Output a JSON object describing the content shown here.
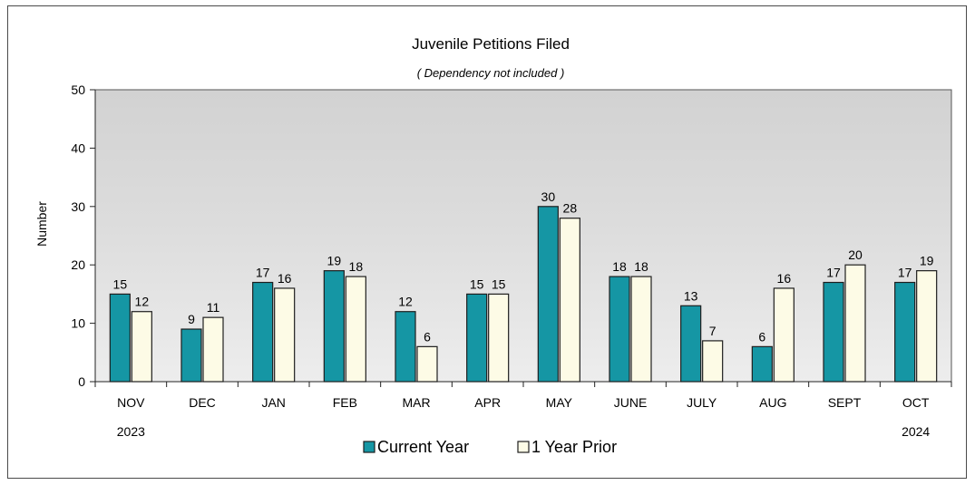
{
  "chart_data": {
    "type": "bar",
    "title": "Juvenile Petitions Filed",
    "subtitle": "( Dependency not included )",
    "ylabel": "Number",
    "xlabel": "",
    "ylim": [
      0,
      50
    ],
    "yticks": [
      0,
      10,
      20,
      30,
      40,
      50
    ],
    "categories": [
      "NOV",
      "DEC",
      "JAN",
      "FEB",
      "MAR",
      "APR",
      "MAY",
      "JUNE",
      "JULY",
      "AUG",
      "SEPT",
      "OCT"
    ],
    "year_labels": [
      {
        "text": "2023",
        "category": "NOV"
      },
      {
        "text": "2024",
        "category": "OCT"
      }
    ],
    "series": [
      {
        "name": "Current Year",
        "color": "#1596a4",
        "values": [
          15,
          9,
          17,
          19,
          12,
          15,
          30,
          18,
          13,
          6,
          17,
          17
        ]
      },
      {
        "name": "1 Year Prior",
        "color": "#fdfbe6",
        "values": [
          12,
          11,
          16,
          18,
          6,
          15,
          28,
          18,
          7,
          16,
          20,
          19
        ]
      }
    ],
    "grid": false,
    "legend": "bottom",
    "plot_background": "gray gradient"
  }
}
